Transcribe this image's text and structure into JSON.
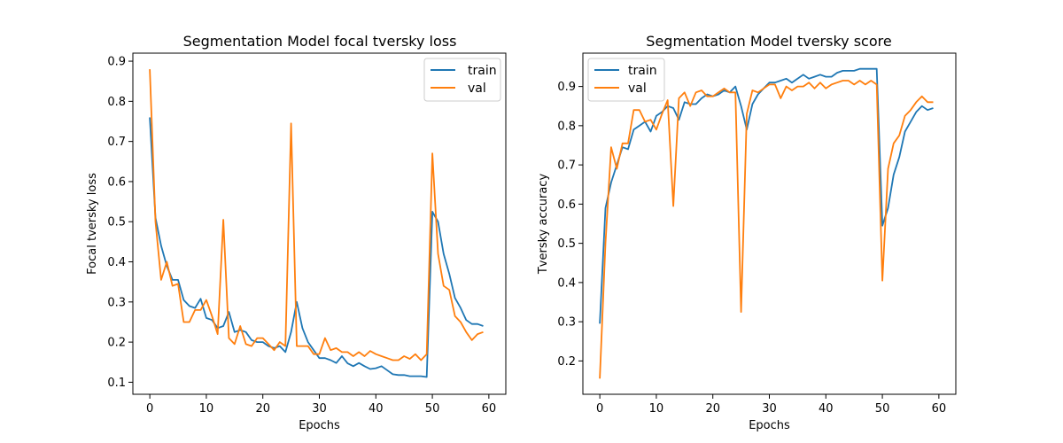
{
  "chart_data": [
    {
      "type": "line",
      "title": "Segmentation Model focal tversky loss",
      "xlabel": "Epochs",
      "ylabel": "Focal tversky loss",
      "xlim": [
        -3,
        63
      ],
      "ylim": [
        0.07,
        0.92
      ],
      "xticks": [
        0,
        10,
        20,
        30,
        40,
        50,
        60
      ],
      "yticks": [
        0.1,
        0.2,
        0.3,
        0.4,
        0.5,
        0.6,
        0.7,
        0.8,
        0.9
      ],
      "ytick_labels": [
        "0.1",
        "0.2",
        "0.3",
        "0.4",
        "0.5",
        "0.6",
        "0.7",
        "0.8",
        "0.9"
      ],
      "legend": "top-right",
      "x": [
        0,
        1,
        2,
        3,
        4,
        5,
        6,
        7,
        8,
        9,
        10,
        11,
        12,
        13,
        14,
        15,
        16,
        17,
        18,
        19,
        20,
        21,
        22,
        23,
        24,
        25,
        26,
        27,
        28,
        29,
        30,
        31,
        32,
        33,
        34,
        35,
        36,
        37,
        38,
        39,
        40,
        41,
        42,
        43,
        44,
        45,
        46,
        47,
        48,
        49,
        50,
        51,
        52,
        53,
        54,
        55,
        56,
        57,
        58,
        59
      ],
      "series": [
        {
          "name": "train",
          "color": "#1f77b4",
          "values": [
            0.76,
            0.51,
            0.44,
            0.39,
            0.355,
            0.355,
            0.305,
            0.29,
            0.285,
            0.308,
            0.26,
            0.255,
            0.235,
            0.24,
            0.275,
            0.225,
            0.23,
            0.225,
            0.205,
            0.2,
            0.2,
            0.19,
            0.185,
            0.19,
            0.175,
            0.225,
            0.3,
            0.235,
            0.2,
            0.18,
            0.16,
            0.16,
            0.155,
            0.148,
            0.165,
            0.147,
            0.14,
            0.148,
            0.14,
            0.133,
            0.135,
            0.14,
            0.13,
            0.12,
            0.118,
            0.118,
            0.115,
            0.115,
            0.115,
            0.113,
            0.525,
            0.5,
            0.42,
            0.37,
            0.31,
            0.285,
            0.255,
            0.245,
            0.245,
            0.24
          ]
        },
        {
          "name": "val",
          "color": "#ff7f0e",
          "values": [
            0.88,
            0.5,
            0.355,
            0.4,
            0.34,
            0.345,
            0.25,
            0.25,
            0.28,
            0.28,
            0.305,
            0.265,
            0.22,
            0.505,
            0.21,
            0.195,
            0.24,
            0.195,
            0.19,
            0.21,
            0.21,
            0.195,
            0.18,
            0.2,
            0.19,
            0.745,
            0.19,
            0.19,
            0.19,
            0.17,
            0.17,
            0.21,
            0.18,
            0.185,
            0.175,
            0.175,
            0.165,
            0.175,
            0.165,
            0.178,
            0.17,
            0.165,
            0.16,
            0.155,
            0.155,
            0.165,
            0.158,
            0.17,
            0.155,
            0.17,
            0.67,
            0.42,
            0.34,
            0.33,
            0.265,
            0.25,
            0.225,
            0.205,
            0.22,
            0.225
          ]
        }
      ]
    },
    {
      "type": "line",
      "title": "Segmentation Model tversky score",
      "xlabel": "Epochs",
      "ylabel": "Tversky accuracy",
      "xlim": [
        -3,
        63
      ],
      "ylim": [
        0.115,
        0.985
      ],
      "xticks": [
        0,
        10,
        20,
        30,
        40,
        50,
        60
      ],
      "yticks": [
        0.2,
        0.3,
        0.4,
        0.5,
        0.6,
        0.7,
        0.8,
        0.9
      ],
      "ytick_labels": [
        "0.2",
        "0.3",
        "0.4",
        "0.5",
        "0.6",
        "0.7",
        "0.8",
        "0.9"
      ],
      "legend": "top-left",
      "x": [
        0,
        1,
        2,
        3,
        4,
        5,
        6,
        7,
        8,
        9,
        10,
        11,
        12,
        13,
        14,
        15,
        16,
        17,
        18,
        19,
        20,
        21,
        22,
        23,
        24,
        25,
        26,
        27,
        28,
        29,
        30,
        31,
        32,
        33,
        34,
        35,
        36,
        37,
        38,
        39,
        40,
        41,
        42,
        43,
        44,
        45,
        46,
        47,
        48,
        49,
        50,
        51,
        52,
        53,
        54,
        55,
        56,
        57,
        58,
        59
      ],
      "series": [
        {
          "name": "train",
          "color": "#1f77b4",
          "values": [
            0.295,
            0.59,
            0.655,
            0.7,
            0.745,
            0.74,
            0.79,
            0.8,
            0.81,
            0.785,
            0.825,
            0.835,
            0.85,
            0.845,
            0.815,
            0.86,
            0.855,
            0.855,
            0.87,
            0.88,
            0.875,
            0.88,
            0.89,
            0.885,
            0.9,
            0.85,
            0.79,
            0.855,
            0.88,
            0.895,
            0.91,
            0.91,
            0.915,
            0.92,
            0.91,
            0.92,
            0.93,
            0.92,
            0.925,
            0.93,
            0.925,
            0.925,
            0.935,
            0.94,
            0.94,
            0.94,
            0.945,
            0.945,
            0.945,
            0.945,
            0.545,
            0.59,
            0.675,
            0.72,
            0.785,
            0.81,
            0.835,
            0.85,
            0.84,
            0.845
          ]
        },
        {
          "name": "val",
          "color": "#ff7f0e",
          "values": [
            0.155,
            0.5,
            0.745,
            0.69,
            0.755,
            0.755,
            0.84,
            0.84,
            0.81,
            0.815,
            0.79,
            0.83,
            0.865,
            0.595,
            0.87,
            0.885,
            0.85,
            0.885,
            0.89,
            0.875,
            0.875,
            0.885,
            0.895,
            0.885,
            0.885,
            0.325,
            0.83,
            0.89,
            0.885,
            0.895,
            0.905,
            0.905,
            0.87,
            0.9,
            0.89,
            0.9,
            0.9,
            0.91,
            0.895,
            0.91,
            0.895,
            0.905,
            0.91,
            0.915,
            0.915,
            0.905,
            0.915,
            0.905,
            0.915,
            0.905,
            0.405,
            0.69,
            0.755,
            0.775,
            0.825,
            0.84,
            0.86,
            0.875,
            0.86,
            0.86
          ]
        }
      ]
    }
  ],
  "x_tick_labels": [
    "0",
    "10",
    "20",
    "30",
    "40",
    "50",
    "60"
  ]
}
